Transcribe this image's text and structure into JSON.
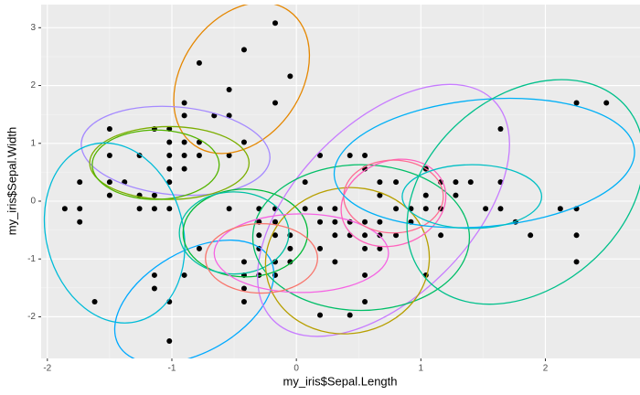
{
  "chart_data": {
    "type": "scatter",
    "x_label": "my_iris$Sepal.Length",
    "y_label": "my_iris$Sepal.Width",
    "xlim": [
      -2.05,
      2.76
    ],
    "ylim": [
      -2.72,
      3.4
    ],
    "xticks": [
      -2,
      -1,
      0,
      1,
      2
    ],
    "yticks": [
      -2,
      -1,
      0,
      1,
      2,
      3
    ],
    "grid": true,
    "point_color": "#000000",
    "x": [
      -0.9,
      -1.14,
      -1.38,
      -1.5,
      -1.02,
      -0.54,
      -1.5,
      -1.02,
      -1.74,
      -1.14,
      -0.54,
      -1.26,
      -1.26,
      -1.86,
      -0.05,
      -0.17,
      -0.17,
      -0.9,
      -0.54,
      -0.9,
      -1.5,
      -0.9,
      -0.78,
      -0.78,
      -1.26,
      -0.78,
      -0.42,
      -1.02,
      -0.42,
      -1.14,
      -1.74,
      -0.9,
      -1.02,
      -1.62,
      -1.74,
      -1.5,
      -0.66,
      -1.02,
      -1.02,
      1.4,
      0.67,
      1.28,
      -0.42,
      0.8,
      -0.17,
      0.55,
      -1.14,
      0.92,
      -0.78,
      -1.02,
      0.07,
      0.19,
      0.31,
      -0.3,
      1.04,
      -0.3,
      -0.05,
      0.43,
      -0.3,
      0.07,
      0.31,
      0.55,
      0.67,
      0.92,
      1.16,
      1.04,
      0.19,
      -0.17,
      -0.42,
      0.19,
      -0.54,
      0.19,
      0.55,
      -0.42,
      -0.42,
      0.31,
      -0.05,
      -1.02,
      -0.3,
      -0.17,
      -0.17,
      0.43,
      -0.9,
      1.52,
      0.55,
      0.8,
      2.12,
      -1.14,
      1.76,
      1.04,
      1.64,
      0.8,
      0.67,
      1.16,
      -0.17,
      -0.05,
      2.25,
      2.25,
      1.28,
      -0.3,
      2.25,
      0.55,
      1.04,
      1.64,
      0.43,
      0.67,
      1.64,
      1.88,
      2.49,
      0.55,
      0.31,
      2.25,
      0.55,
      0.67,
      0.19,
      1.16,
      0.43
    ],
    "y": [
      1.02,
      -0.13,
      0.33,
      0.1,
      1.25,
      1.93,
      0.79,
      0.79,
      -0.36,
      0.1,
      1.48,
      0.79,
      -0.13,
      -0.13,
      2.16,
      3.08,
      1.7,
      1.7,
      0.79,
      1.48,
      1.25,
      0.56,
      1.02,
      0.79,
      0.1,
      2.39,
      2.62,
      0.33,
      1.02,
      1.25,
      -0.13,
      0.79,
      1.02,
      -1.74,
      0.33,
      0.33,
      1.48,
      0.56,
      -0.13,
      0.33,
      0.33,
      0.1,
      -1.74,
      -0.59,
      -0.59,
      0.56,
      -1.51,
      -0.36,
      -0.82,
      -2.42,
      -0.13,
      -1.97,
      -0.36,
      -0.36,
      0.1,
      -0.13,
      -0.82,
      -1.97,
      -1.28,
      0.33,
      -0.59,
      -1.28,
      -0.36,
      -0.13,
      -0.59,
      -0.13,
      -0.36,
      -1.05,
      -1.51,
      -0.82,
      -0.13,
      0.79,
      -1.74,
      -1.28,
      -1.05,
      -0.13,
      -1.05,
      -1.74,
      -0.82,
      -0.13,
      -0.36,
      -0.36,
      -1.28,
      -0.13,
      -0.36,
      -0.13,
      -0.13,
      -1.28,
      -0.36,
      -1.28,
      1.25,
      0.33,
      -0.82,
      -0.13,
      -1.28,
      -0.59,
      1.7,
      -1.05,
      0.33,
      -0.59,
      -0.59,
      -0.82,
      0.56,
      0.33,
      -0.59,
      -0.59,
      -0.13,
      -0.59,
      1.7,
      -0.59,
      -1.05,
      -0.13,
      0.79,
      0.1,
      -0.13,
      0.33,
      0.79
    ],
    "ellipses": [
      {
        "color": "#E58700",
        "cx": -0.44,
        "cy": 2.13,
        "rx": 0.66,
        "ry": 1.03,
        "angle": -55
      },
      {
        "color": "#A58AFF",
        "cx": -0.97,
        "cy": 0.87,
        "rx": 0.76,
        "ry": 0.76,
        "angle": 5
      },
      {
        "color": "#7CAE00",
        "cx": -1.02,
        "cy": 0.66,
        "rx": 0.64,
        "ry": 0.63,
        "angle": 0
      },
      {
        "color": "#53B400",
        "cx": -1.13,
        "cy": 0.63,
        "rx": 0.51,
        "ry": 0.6,
        "angle": 0
      },
      {
        "color": "#00BCD8",
        "cx": -1.46,
        "cy": -0.55,
        "rx": 0.55,
        "ry": 1.58,
        "angle": -15
      },
      {
        "color": "#00A9FF",
        "cx": -0.82,
        "cy": -1.74,
        "rx": 0.7,
        "ry": 0.87,
        "angle": -30
      },
      {
        "color": "#00BA38",
        "cx": -0.41,
        "cy": -0.55,
        "rx": 0.5,
        "ry": 0.76,
        "angle": 0
      },
      {
        "color": "#00C1A3",
        "cx": -0.5,
        "cy": -0.55,
        "rx": 0.44,
        "ry": 0.71,
        "angle": 0
      },
      {
        "color": "#C77CFF",
        "cx": 0.7,
        "cy": -0.16,
        "rx": 1.25,
        "ry": 1.5,
        "angle": -45
      },
      {
        "color": "#00BE67",
        "cx": 0.52,
        "cy": -0.63,
        "rx": 0.87,
        "ry": 1.26,
        "angle": 0
      },
      {
        "color": "#B79F00",
        "cx": 0.41,
        "cy": -1.03,
        "rx": 0.66,
        "ry": 1.26,
        "angle": -10
      },
      {
        "color": "#F564E3",
        "cx": 0.04,
        "cy": -0.9,
        "rx": 0.7,
        "ry": 0.68,
        "angle": 0
      },
      {
        "color": "#F8766D",
        "cx": -0.28,
        "cy": -0.99,
        "rx": 0.45,
        "ry": 0.6,
        "angle": 0
      },
      {
        "color": "#FF62BC",
        "cx": 0.78,
        "cy": -0.03,
        "rx": 0.43,
        "ry": 0.73,
        "angle": -20
      },
      {
        "color": "#FF6C91",
        "cx": 0.78,
        "cy": 0.08,
        "rx": 0.4,
        "ry": 0.63,
        "angle": 0
      },
      {
        "color": "#00B0F6",
        "cx": 1.51,
        "cy": 0.66,
        "rx": 1.21,
        "ry": 1.1,
        "angle": -5
      },
      {
        "color": "#00BFC4",
        "cx": 1.41,
        "cy": 0.08,
        "rx": 0.56,
        "ry": 0.55,
        "angle": 0
      },
      {
        "color": "#00C08B",
        "cx": 1.84,
        "cy": 0.16,
        "rx": 1.06,
        "ry": 1.66,
        "angle": -40
      }
    ]
  }
}
